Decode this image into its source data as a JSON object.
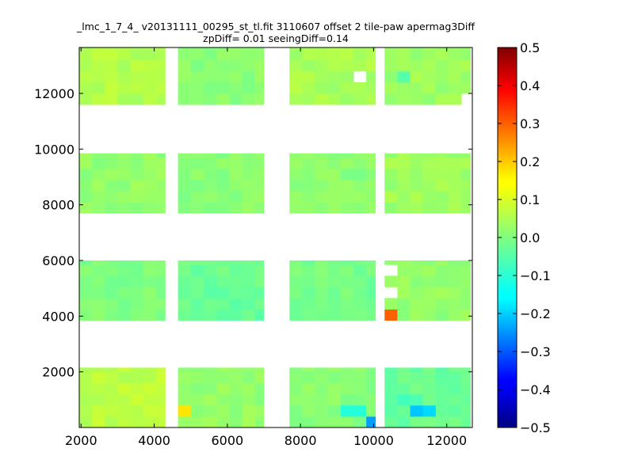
{
  "chart_data": {
    "type": "heatmap",
    "title_lines": [
      "_lmc_1_7_4_ v20131111_00295_st_tl.fit 3110607 offset 2 tile-paw apermag3Diff",
      "zpDiff= 0.01 seeingDiff=0.14"
    ],
    "xlabel": "",
    "ylabel": "",
    "xlim": [
      1950,
      12700
    ],
    "ylim": [
      0,
      13650
    ],
    "x_ticks": [
      2000,
      4000,
      6000,
      8000,
      10000,
      12000
    ],
    "y_ticks": [
      2000,
      4000,
      6000,
      8000,
      10000,
      12000
    ],
    "colormap": "jet",
    "clim": [
      -0.5,
      0.5
    ],
    "colorbar_ticks": [
      0.5,
      0.4,
      0.3,
      0.2,
      0.1,
      0.0,
      -0.1,
      -0.2,
      -0.3,
      -0.4,
      -0.5
    ],
    "colorbar_tick_labels": [
      "0.5",
      "0.4",
      "0.3",
      "0.2",
      "0.1",
      "0.0",
      "−0.1",
      "−0.2",
      "−0.3",
      "−0.4",
      "−0.5"
    ],
    "cell_width": 350,
    "cell_height": 400,
    "columns": [
      {
        "x0": 1950,
        "x1": 4300
      },
      {
        "x0": 4650,
        "x1": 7000
      },
      {
        "x0": 7700,
        "x1": 10050
      },
      {
        "x0": 10300,
        "x1": 12650
      }
    ],
    "rows": [
      {
        "y0": 0,
        "y1": 2150
      },
      {
        "y0": 3850,
        "y1": 6000
      },
      {
        "y0": 7700,
        "y1": 9850
      },
      {
        "y0": 11600,
        "y1": 13650
      }
    ],
    "base_values": [
      [
        0.06,
        0.02,
        0.01,
        -0.02
      ],
      [
        0.0,
        -0.02,
        -0.01,
        0.02
      ],
      [
        0.02,
        0.01,
        0.01,
        0.03
      ],
      [
        0.05,
        0.01,
        0.04,
        0.03
      ]
    ],
    "overrides": [
      {
        "x": 10500,
        "y": 4150,
        "v": 0.28
      },
      {
        "x": 4850,
        "y": 450,
        "v": 0.15
      },
      {
        "x": 9850,
        "y": 150,
        "v": -0.22
      },
      {
        "x": 11050,
        "y": 450,
        "v": -0.18
      },
      {
        "x": 11550,
        "y": 450,
        "v": -0.16
      },
      {
        "x": 9150,
        "y": 450,
        "v": -0.09
      },
      {
        "x": 9600,
        "y": 450,
        "v": -0.09
      },
      {
        "x": 10700,
        "y": 1000,
        "v": -0.06
      },
      {
        "x": 11200,
        "y": 1000,
        "v": -0.05
      },
      {
        "x": 10950,
        "y": 12700,
        "v": -0.04
      }
    ],
    "holes": [
      {
        "x": 9600,
        "y": 12500
      },
      {
        "x": 10500,
        "y": 5700
      },
      {
        "x": 10500,
        "y": 4700
      },
      {
        "x": 12400,
        "y": 11900
      }
    ]
  }
}
